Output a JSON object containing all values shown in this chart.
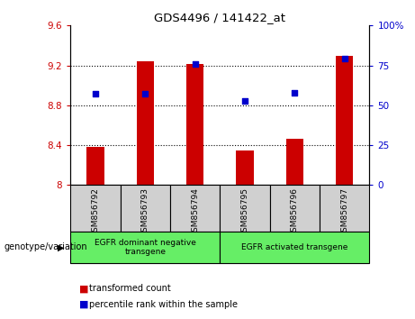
{
  "title": "GDS4496 / 141422_at",
  "samples": [
    "GSM856792",
    "GSM856793",
    "GSM856794",
    "GSM856795",
    "GSM856796",
    "GSM856797"
  ],
  "bar_values": [
    8.38,
    9.24,
    9.21,
    8.35,
    8.46,
    9.3
  ],
  "dot_values": [
    57,
    57,
    76,
    53,
    58,
    79
  ],
  "ylim_left": [
    8.0,
    9.6
  ],
  "ylim_right": [
    0,
    100
  ],
  "yticks_left": [
    8.0,
    8.4,
    8.8,
    9.2,
    9.6
  ],
  "ytick_labels_left": [
    "8",
    "8.4",
    "8.8",
    "9.2",
    "9.6"
  ],
  "yticks_right": [
    0,
    25,
    50,
    75,
    100
  ],
  "ytick_labels_right": [
    "0",
    "25",
    "50",
    "75",
    "100%"
  ],
  "hline_values": [
    8.4,
    8.8,
    9.2
  ],
  "bar_color": "#cc0000",
  "dot_color": "#0000cc",
  "groups": [
    {
      "label": "EGFR dominant negative\ntransgene",
      "indices": [
        0,
        1,
        2
      ]
    },
    {
      "label": "EGFR activated transgene",
      "indices": [
        3,
        4,
        5
      ]
    }
  ],
  "group_color": "#66ee66",
  "sample_box_color": "#d0d0d0",
  "legend_label_bar": "transformed count",
  "legend_label_dot": "percentile rank within the sample",
  "genotype_label": "genotype/variation",
  "bar_width": 0.35,
  "tick_color_left": "#cc0000",
  "tick_color_right": "#0000cc",
  "figsize": [
    4.61,
    3.54
  ],
  "dpi": 100
}
